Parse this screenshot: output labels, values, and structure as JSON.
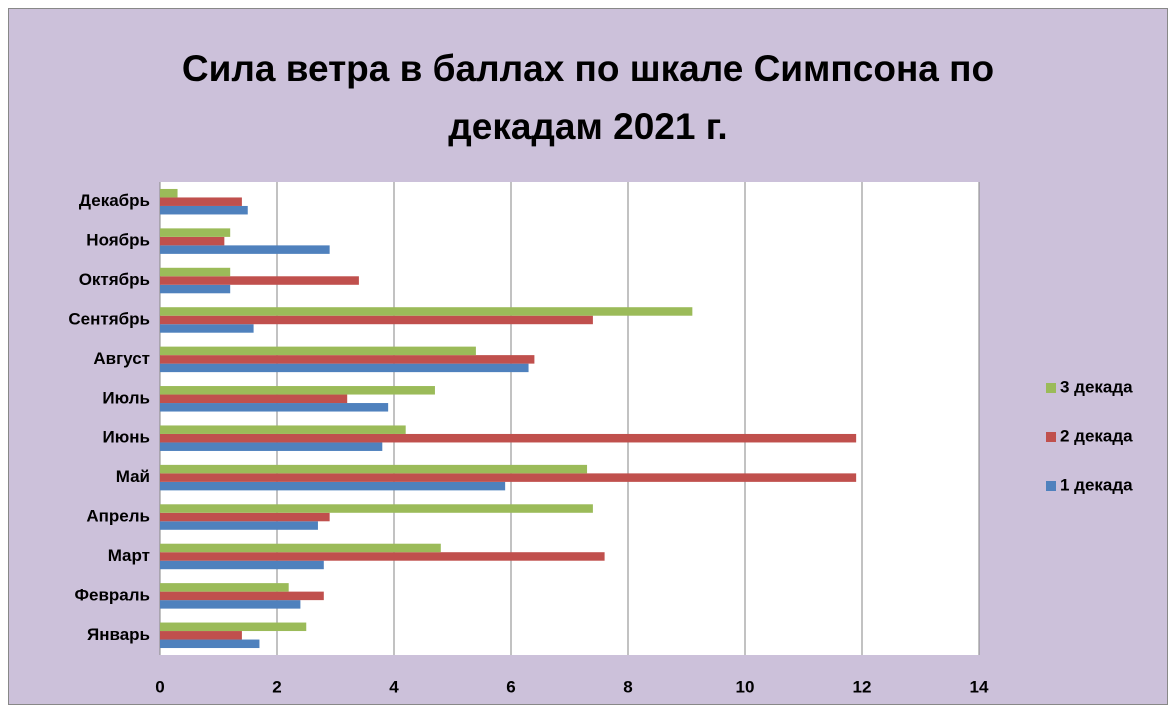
{
  "chart_data": {
    "type": "barh",
    "title": "Сила ветра в баллах по шкале Симпсона по декадам 2021 г.",
    "categories": [
      "Январь",
      "Февраль",
      "Март",
      "Апрель",
      "Май",
      "Июнь",
      "Июль",
      "Август",
      "Сентябрь",
      "Октябрь",
      "Ноябрь",
      "Декабрь"
    ],
    "series": [
      {
        "name": "1 декада",
        "color": "#4f81bd",
        "values": [
          1.7,
          2.4,
          2.8,
          2.7,
          5.9,
          3.8,
          3.9,
          6.3,
          1.6,
          1.2,
          2.9,
          1.5
        ]
      },
      {
        "name": "2 декада",
        "color": "#c0504d",
        "values": [
          1.4,
          2.8,
          7.6,
          2.9,
          11.9,
          11.9,
          3.2,
          6.4,
          7.4,
          3.4,
          1.1,
          1.4
        ]
      },
      {
        "name": "3 декада",
        "color": "#9bbb59",
        "values": [
          2.5,
          2.2,
          4.8,
          7.4,
          7.3,
          4.2,
          4.7,
          5.4,
          9.1,
          1.2,
          1.2,
          0.3
        ]
      }
    ],
    "xlim": [
      0,
      14
    ],
    "xticks": [
      0,
      2,
      4,
      6,
      8,
      10,
      12,
      14
    ],
    "grid": true,
    "legend": "right"
  }
}
